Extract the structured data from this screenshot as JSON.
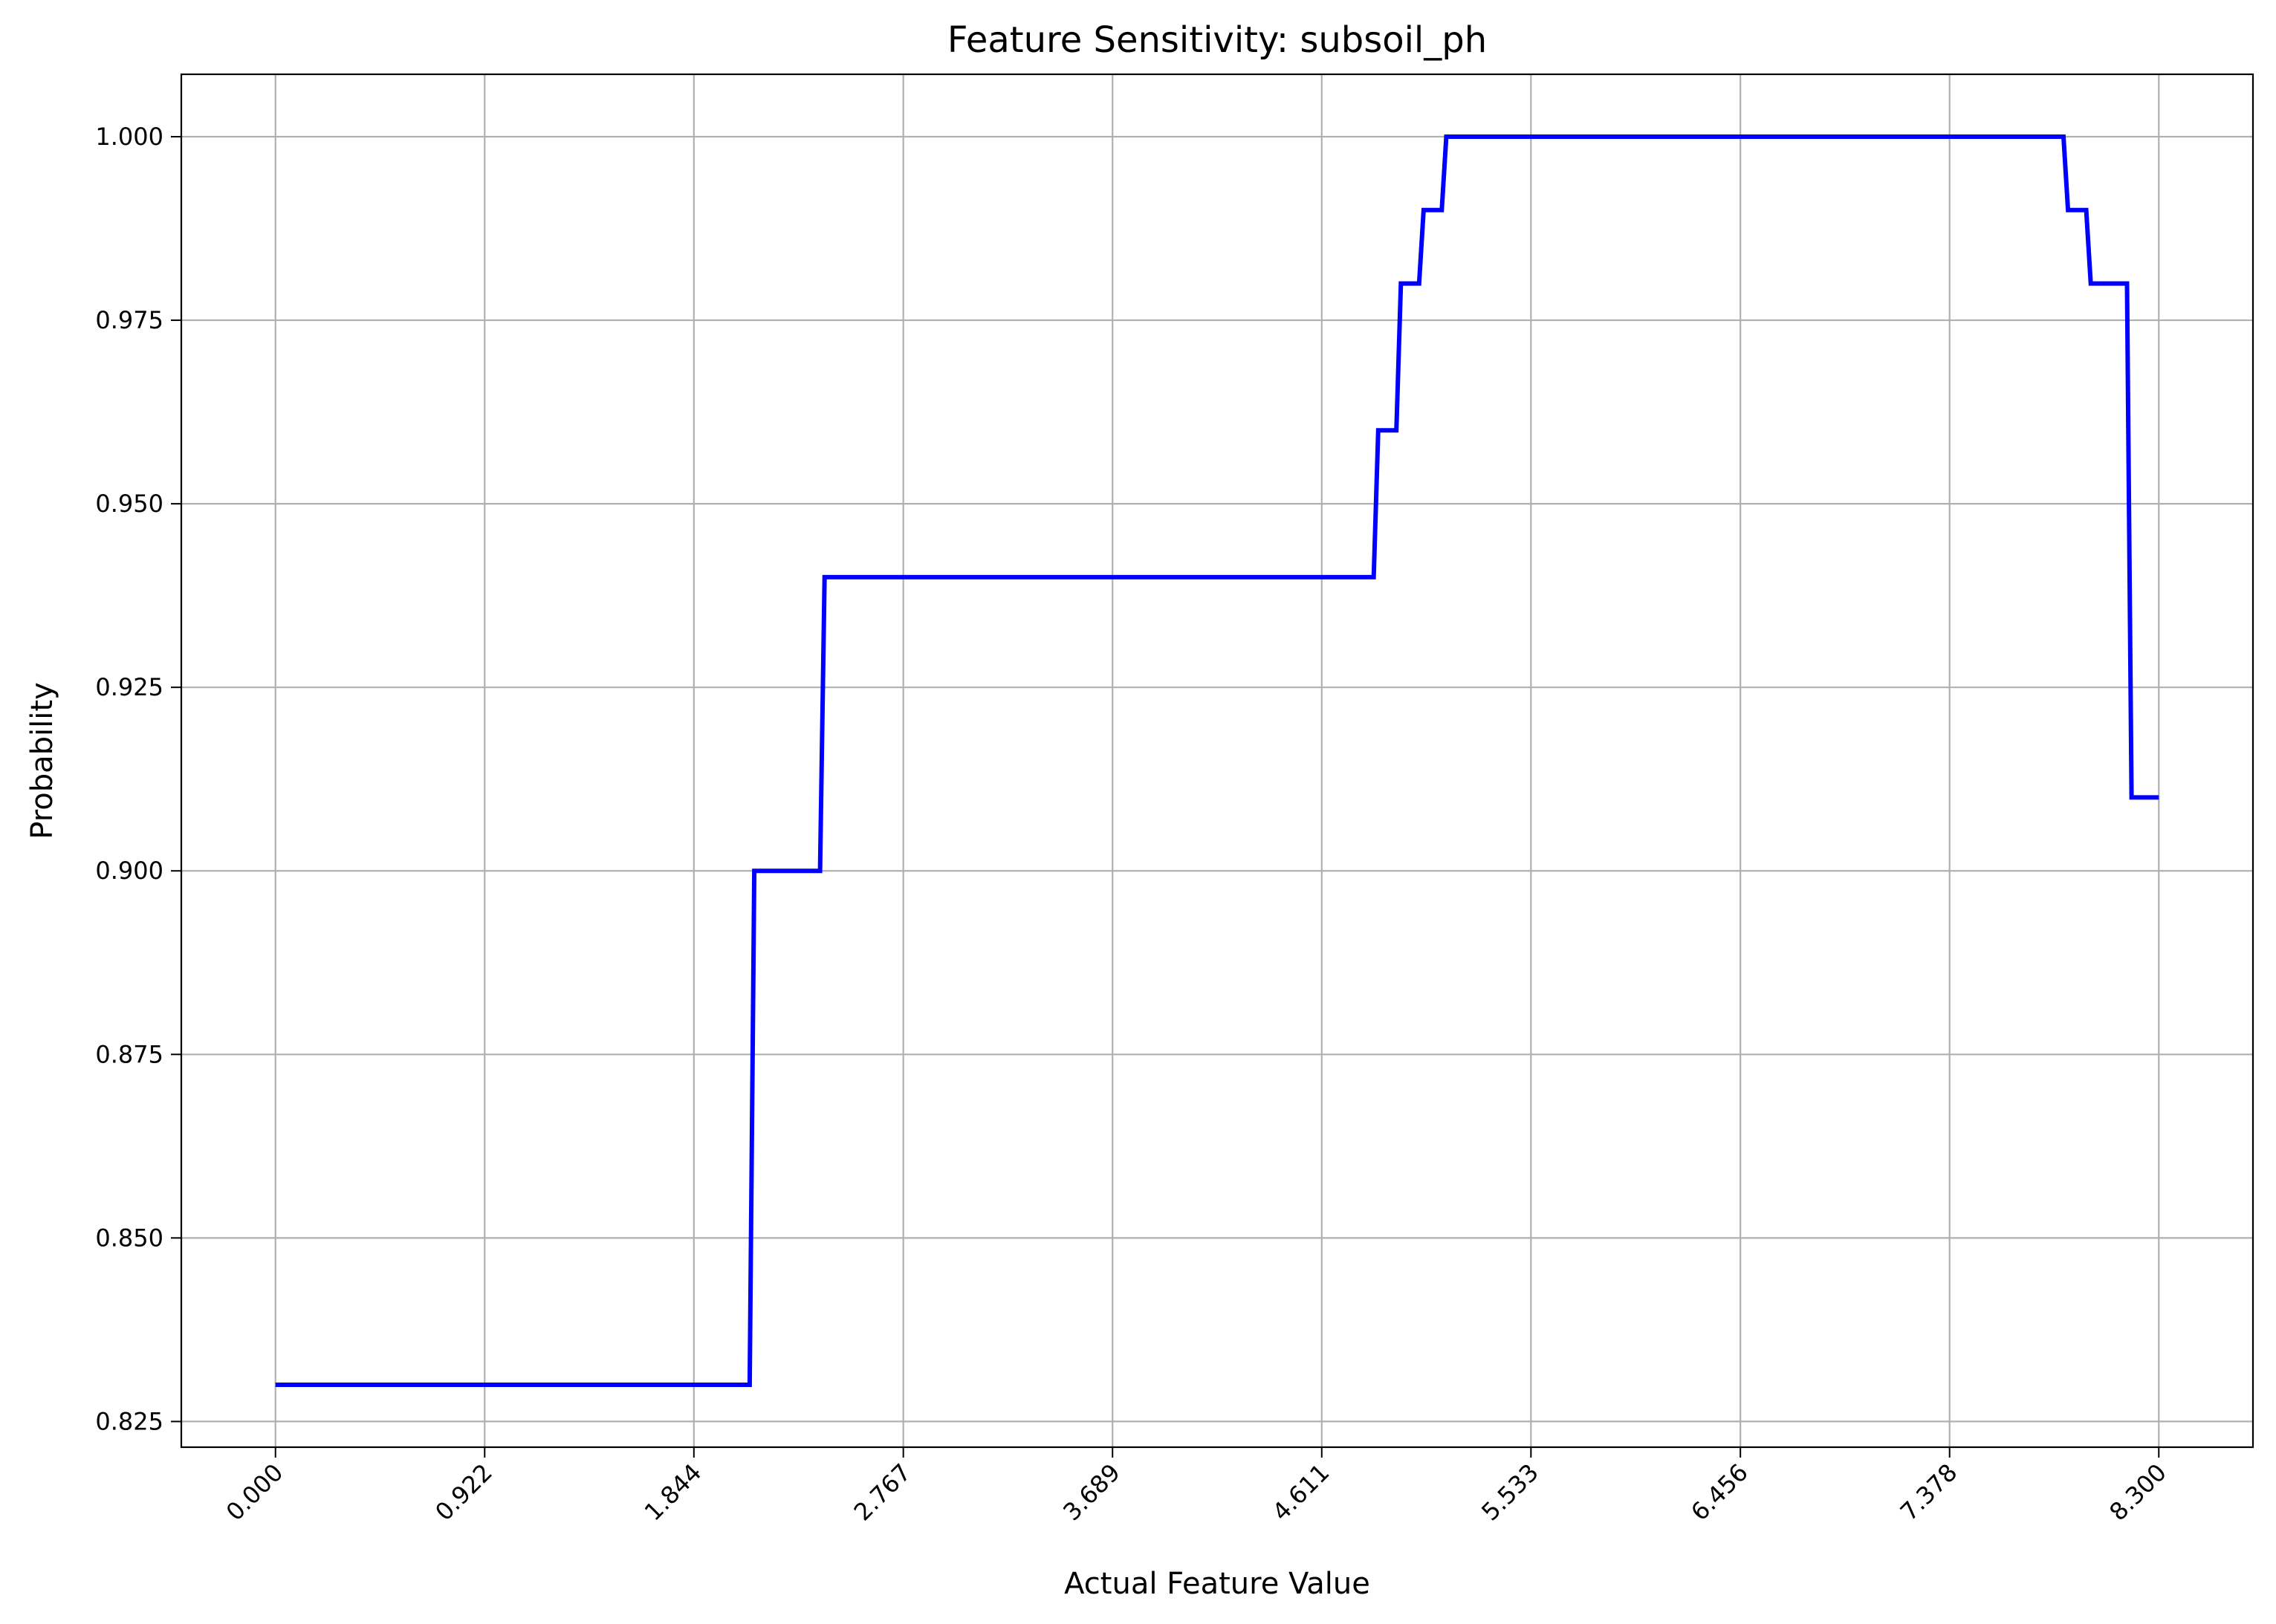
{
  "chart_data": {
    "type": "line",
    "title": "Feature Sensitivity: subsoil_ph",
    "xlabel": "Actual Feature Value",
    "ylabel": "Probability",
    "xlim": [
      -0.415,
      8.715
    ],
    "ylim": [
      0.8215,
      1.0085
    ],
    "x_ticks": [
      "0.000",
      "0.922",
      "1.844",
      "2.767",
      "3.689",
      "4.611",
      "5.533",
      "6.456",
      "7.378",
      "8.300"
    ],
    "x_tick_values": [
      0.0,
      0.922,
      1.844,
      2.767,
      3.689,
      4.611,
      5.533,
      6.456,
      7.378,
      8.3
    ],
    "y_ticks": [
      "0.825",
      "0.850",
      "0.875",
      "0.900",
      "0.925",
      "0.950",
      "0.975",
      "1.000"
    ],
    "y_tick_values": [
      0.825,
      0.85,
      0.875,
      0.9,
      0.925,
      0.95,
      0.975,
      1.0
    ],
    "grid": true,
    "series": [
      {
        "color": "#0000ff",
        "x": [
          0.0,
          2.09,
          2.11,
          2.4,
          2.42,
          4.84,
          4.86,
          4.94,
          4.96,
          5.04,
          5.06,
          5.14,
          5.16,
          7.88,
          7.9,
          7.98,
          8.0,
          8.16,
          8.18,
          8.3
        ],
        "y": [
          0.83,
          0.83,
          0.9,
          0.9,
          0.94,
          0.94,
          0.96,
          0.96,
          0.98,
          0.98,
          0.99,
          0.99,
          1.0,
          1.0,
          0.99,
          0.99,
          0.98,
          0.98,
          0.91,
          0.91
        ]
      }
    ]
  }
}
